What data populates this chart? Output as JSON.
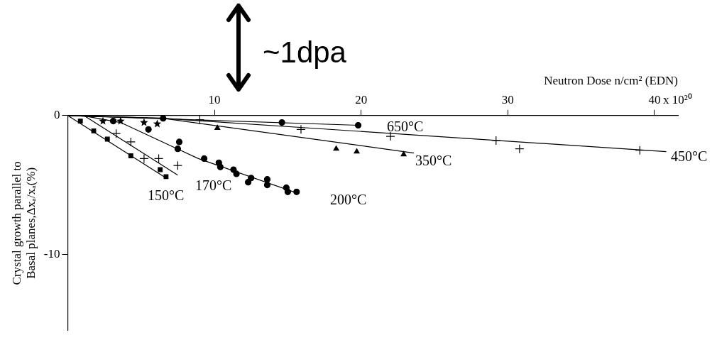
{
  "chart_data": {
    "type": "scatter",
    "xlabel": "Neutron Dose n/cm² (EDN)",
    "ylabel": [
      "Crystal growth parallel to",
      "Basal planes,Δxₐ/xₐ(%)"
    ],
    "xlim": [
      0,
      41.6
    ],
    "ylim": [
      -15.5,
      0
    ],
    "xticks": [
      10,
      20,
      30,
      40
    ],
    "yticks": [
      0,
      -10
    ],
    "grid": false,
    "legend": false,
    "series": [
      {
        "type": "scatter",
        "marker": "square",
        "color": "#000000",
        "x": [
          0.86,
          1.77,
          2.7,
          4.3,
          6.3,
          6.7
        ],
        "values": [
          -0.4,
          -1.1,
          -1.7,
          -2.9,
          -3.9,
          -4.4
        ]
      },
      {
        "type": "line",
        "marker": "none",
        "color": "#000000",
        "x": [
          0,
          6.7
        ],
        "values": [
          0,
          -4.5
        ]
      },
      {
        "type": "scatter",
        "marker": "cross",
        "color": "#000000",
        "x": [
          3.3,
          4.3,
          5.2,
          6.2,
          7.5
        ],
        "values": [
          -1.3,
          -1.9,
          -3.1,
          -3.1,
          -3.6
        ]
      },
      {
        "type": "line",
        "marker": "none",
        "color": "#000000",
        "x": [
          1.1,
          7.5
        ],
        "values": [
          0,
          -4.3
        ]
      },
      {
        "type": "scatter",
        "marker": "star",
        "color": "#000000",
        "x": [
          2.4,
          3.6,
          5.2,
          6.1
        ],
        "values": [
          -0.4,
          -0.4,
          -0.5,
          -0.6
        ]
      },
      {
        "type": "scatter",
        "marker": "circle",
        "color": "#000000",
        "x": [
          3.1,
          5.5,
          7.6,
          7.5,
          9.3,
          10.3,
          10.4,
          11.3,
          11.5,
          12.5,
          12.3,
          13.6,
          13.6,
          14.9,
          15.0,
          15.6
        ],
        "values": [
          -0.4,
          -1.0,
          -1.9,
          -2.4,
          -3.1,
          -3.4,
          -3.7,
          -3.9,
          -4.2,
          -4.5,
          -4.8,
          -4.6,
          -5.0,
          -5.2,
          -5.5,
          -5.5
        ]
      },
      {
        "type": "line",
        "marker": "none",
        "color": "#000000",
        "x": [
          1.0,
          3.6,
          8.9,
          15.4
        ],
        "values": [
          0,
          -0.5,
          -3.1,
          -5.5
        ]
      },
      {
        "type": "scatter",
        "marker": "circle",
        "color": "#000000",
        "x": [
          6.5,
          14.6,
          19.8
        ],
        "values": [
          -0.2,
          -0.5,
          -0.7
        ]
      },
      {
        "type": "line",
        "marker": "none",
        "color": "#000000",
        "x": [
          0,
          19.8
        ],
        "values": [
          0,
          -0.7
        ]
      },
      {
        "type": "scatter",
        "marker": "cross",
        "color": "#000000",
        "x": [
          9.0,
          15.9,
          22.0,
          29.2,
          39.0,
          30.8
        ],
        "values": [
          -0.3,
          -1.0,
          -1.5,
          -1.8,
          -2.5,
          -2.4
        ]
      },
      {
        "type": "line",
        "marker": "none",
        "color": "#000000",
        "x": [
          0,
          6.5,
          40.8
        ],
        "values": [
          0,
          -0.2,
          -2.6
        ]
      },
      {
        "type": "scatter",
        "marker": "triangle",
        "color": "#000000",
        "x": [
          10.2,
          18.3,
          19.7,
          22.9
        ],
        "values": [
          -0.9,
          -2.4,
          -2.6,
          -2.8
        ]
      },
      {
        "type": "line",
        "marker": "none",
        "color": "#000000",
        "x": [
          0,
          6.5,
          23.6
        ],
        "values": [
          0,
          -0.2,
          -2.7
        ]
      }
    ],
    "annotations": [
      "150°C",
      "170°C",
      "200°C",
      "350°C",
      "650°C",
      "450°C",
      "~1dpa",
      "x 10²⁰"
    ]
  }
}
